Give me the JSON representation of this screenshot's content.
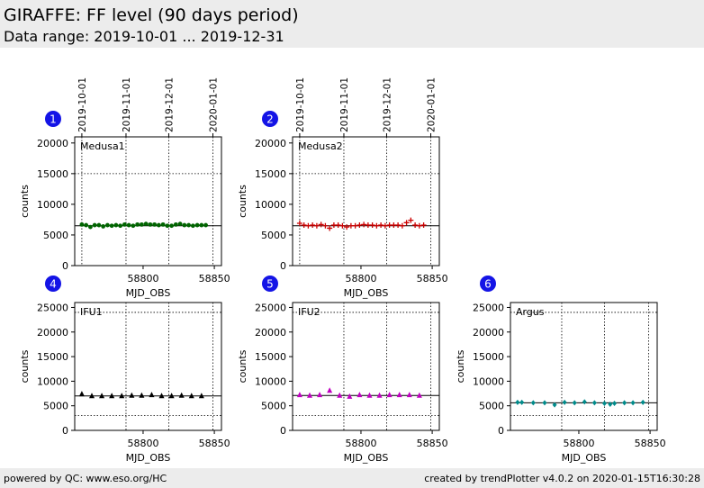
{
  "header": {
    "title": "GIRAFFE: FF level (90 days period)",
    "subtitle": "Data range: 2019-10-01 ... 2019-12-31"
  },
  "footer": {
    "left": "powered by QC: www.eso.org/HC",
    "right": "created by trendPlotter v4.0.2 on 2020-01-15T16:30:28"
  },
  "colors": {
    "badge": "#1414e6",
    "medusa1": "#006400",
    "medusa2": "#cc0000",
    "ifu1": "#000000",
    "ifu2": "#c000c0",
    "argus": "#008b8b"
  },
  "chart_data": [
    {
      "type": "scatter",
      "badge": "1",
      "label": "Medusa1",
      "marker": "dot",
      "color": "#006400",
      "xlabel": "MJD_OBS",
      "ylabel": "counts",
      "xlim": [
        58752,
        58855
      ],
      "ylim": [
        0,
        21000
      ],
      "yticks": [
        0,
        5000,
        10000,
        15000,
        20000
      ],
      "xticks": [
        58800,
        58850
      ],
      "top_date_ticks": [
        {
          "label": "2019-10-01",
          "mjd": 58757
        },
        {
          "label": "2019-11-01",
          "mjd": 58788
        },
        {
          "label": "2019-12-01",
          "mjd": 58818
        },
        {
          "label": "2020-01-01",
          "mjd": 58849
        }
      ],
      "ref_line": 6500,
      "dotted_hlines": [
        15000
      ],
      "x": [
        58757,
        58760,
        58763,
        58766,
        58769,
        58772,
        58775,
        58778,
        58781,
        58784,
        58787,
        58790,
        58793,
        58796,
        58799,
        58802,
        58805,
        58808,
        58811,
        58814,
        58817,
        58820,
        58823,
        58826,
        58829,
        58832,
        58835,
        58838,
        58841,
        58844
      ],
      "y": [
        6700,
        6600,
        6300,
        6600,
        6600,
        6400,
        6600,
        6500,
        6600,
        6500,
        6700,
        6600,
        6500,
        6700,
        6700,
        6800,
        6700,
        6700,
        6600,
        6700,
        6500,
        6500,
        6700,
        6800,
        6600,
        6600,
        6500,
        6600,
        6600,
        6600
      ]
    },
    {
      "type": "scatter",
      "badge": "2",
      "label": "Medusa2",
      "marker": "plus",
      "color": "#cc0000",
      "xlabel": "MJD_OBS",
      "ylabel": "counts",
      "xlim": [
        58752,
        58855
      ],
      "ylim": [
        0,
        21000
      ],
      "yticks": [
        0,
        5000,
        10000,
        15000,
        20000
      ],
      "xticks": [
        58800,
        58850
      ],
      "top_date_ticks": [
        {
          "label": "2019-10-01",
          "mjd": 58757
        },
        {
          "label": "2019-11-01",
          "mjd": 58788
        },
        {
          "label": "2019-12-01",
          "mjd": 58818
        },
        {
          "label": "2020-01-01",
          "mjd": 58849
        }
      ],
      "ref_line": 6500,
      "dotted_hlines": [
        15000
      ],
      "x": [
        58757,
        58760,
        58763,
        58766,
        58769,
        58772,
        58775,
        58778,
        58781,
        58784,
        58787,
        58790,
        58793,
        58796,
        58799,
        58802,
        58805,
        58808,
        58811,
        58814,
        58817,
        58820,
        58823,
        58826,
        58829,
        58832,
        58835,
        58838,
        58841,
        58844
      ],
      "y": [
        6900,
        6600,
        6500,
        6600,
        6500,
        6700,
        6500,
        6100,
        6600,
        6600,
        6500,
        6300,
        6500,
        6500,
        6600,
        6700,
        6600,
        6600,
        6500,
        6600,
        6500,
        6600,
        6600,
        6600,
        6500,
        7000,
        7400,
        6600,
        6500,
        6600
      ]
    },
    {
      "type": "scatter",
      "badge": "4",
      "label": "IFU1",
      "marker": "triangle",
      "color": "#000000",
      "xlabel": "MJD_OBS",
      "ylabel": "counts",
      "xlim": [
        58752,
        58855
      ],
      "ylim": [
        0,
        26000
      ],
      "yticks": [
        0,
        5000,
        10000,
        15000,
        20000,
        25000
      ],
      "xticks": [
        58800,
        58850
      ],
      "top_date_ticks": [],
      "vlines_mjd": [
        58788,
        58818,
        58849
      ],
      "ref_line": 7000,
      "dotted_hlines": [
        3000,
        24000
      ],
      "x": [
        58757,
        58764,
        58771,
        58778,
        58785,
        58792,
        58799,
        58806,
        58813,
        58820,
        58827,
        58834,
        58841
      ],
      "y": [
        7400,
        7000,
        7000,
        7000,
        7000,
        7100,
        7100,
        7200,
        7000,
        7000,
        7100,
        7000,
        7000
      ]
    },
    {
      "type": "scatter",
      "badge": "5",
      "label": "IFU2",
      "marker": "triangle",
      "color": "#c000c0",
      "xlabel": "MJD_OBS",
      "ylabel": "counts",
      "xlim": [
        58752,
        58855
      ],
      "ylim": [
        0,
        26000
      ],
      "yticks": [
        0,
        5000,
        10000,
        15000,
        20000,
        25000
      ],
      "xticks": [
        58800,
        58850
      ],
      "top_date_ticks": [],
      "vlines_mjd": [
        58788,
        58818,
        58849
      ],
      "ref_line": 7100,
      "dotted_hlines": [
        3000,
        24000
      ],
      "x": [
        58757,
        58764,
        58771,
        58778,
        58785,
        58792,
        58799,
        58806,
        58813,
        58820,
        58827,
        58834,
        58841
      ],
      "y": [
        7200,
        7100,
        7200,
        8100,
        7100,
        6900,
        7200,
        7100,
        7100,
        7200,
        7200,
        7200,
        7100
      ]
    },
    {
      "type": "scatter",
      "badge": "6",
      "label": "Argus",
      "marker": "diamond",
      "color": "#008b8b",
      "xlabel": "MJD_OBS",
      "ylabel": "counts",
      "xlim": [
        58752,
        58855
      ],
      "ylim": [
        0,
        26000
      ],
      "yticks": [
        0,
        5000,
        10000,
        15000,
        20000,
        25000
      ],
      "xticks": [
        58800,
        58850
      ],
      "top_date_ticks": [],
      "vlines_mjd": [
        58788,
        58818,
        58849
      ],
      "ref_line": 5600,
      "dotted_hlines": [
        3000,
        24000
      ],
      "x": [
        58757,
        58760,
        58768,
        58776,
        58783,
        58790,
        58797,
        58804,
        58811,
        58818,
        58822,
        58825,
        58832,
        58838,
        58845
      ],
      "y": [
        5700,
        5700,
        5600,
        5600,
        5200,
        5700,
        5600,
        5800,
        5600,
        5500,
        5300,
        5500,
        5600,
        5600,
        5700
      ]
    }
  ]
}
